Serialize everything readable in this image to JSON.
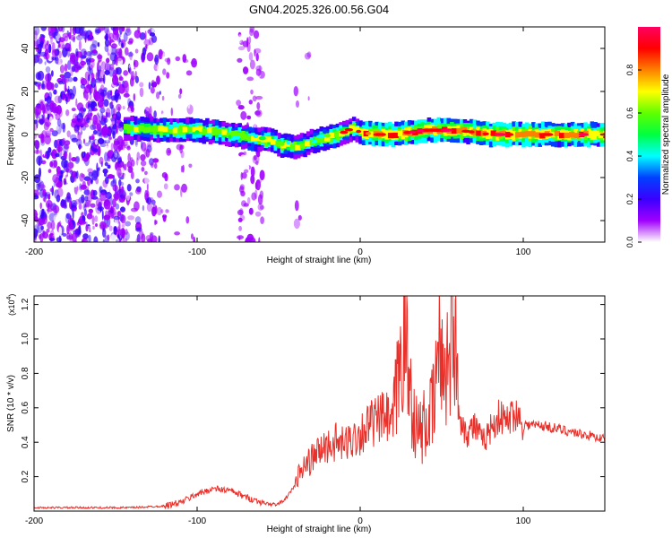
{
  "title": "GN04.2025.326.00.56.G04",
  "chart_data": [
    {
      "type": "heatmap",
      "title": "GN04.2025.326.00.56.G04",
      "xlabel": "Height of straight line (km)",
      "ylabel": "Frequency (Hz)",
      "xlim": [
        -200,
        150
      ],
      "ylim": [
        -50,
        50
      ],
      "xticks": [
        "-200",
        "-100",
        "0",
        "100"
      ],
      "yticks": [
        "40",
        "20",
        "0",
        "-20",
        "-40"
      ],
      "colorbar": {
        "label": "Normalized spectral amplitude",
        "range": [
          0,
          1
        ],
        "ticks": [
          "0.0",
          "0.2",
          "0.4",
          "0.6",
          "0.8"
        ],
        "colors": [
          "#ffffff",
          "#a000ff",
          "#3a00ff",
          "#0040ff",
          "#00ffff",
          "#00ff40",
          "#60ff00",
          "#ffff00",
          "#ff8000",
          "#ff0000",
          "#ff0060"
        ]
      },
      "ridge": {
        "x": [
          -145,
          -120,
          -100,
          -80,
          -65,
          -55,
          -50,
          -45,
          -40,
          -30,
          -20,
          -10,
          -5,
          0,
          10,
          20,
          30,
          40,
          50,
          60,
          80,
          100,
          120,
          150
        ],
        "frequency": [
          3,
          2,
          2,
          0,
          -2,
          -3,
          -5,
          -5,
          -6,
          -3,
          -1,
          1,
          3,
          1,
          0,
          0,
          1,
          2,
          2,
          2,
          0,
          0,
          0,
          0
        ]
      }
    },
    {
      "type": "line",
      "xlabel": "Height of straight line (km)",
      "ylabel": "SNR (10 * v/v)",
      "y_multiplier": "(x10",
      "y_multiplier_exp": "4",
      "y_multiplier_close": ")",
      "xlim": [
        -200,
        150
      ],
      "ylim": [
        0,
        1.25
      ],
      "xticks": [
        "-200",
        "-100",
        "0",
        "100"
      ],
      "yticks": [
        "0.2",
        "0.4",
        "0.6",
        "0.8",
        "1.0",
        "1.2"
      ],
      "color": "#e8312b",
      "series": [
        {
          "name": "SNR",
          "x": [
            -200,
            -180,
            -160,
            -140,
            -120,
            -110,
            -100,
            -90,
            -80,
            -70,
            -60,
            -55,
            -50,
            -45,
            -40,
            -35,
            -30,
            -25,
            -20,
            -15,
            -10,
            -5,
            0,
            5,
            10,
            15,
            20,
            25,
            27,
            30,
            35,
            40,
            45,
            48,
            50,
            55,
            57,
            60,
            65,
            70,
            75,
            80,
            85,
            90,
            95,
            100,
            110,
            120,
            130,
            140,
            150
          ],
          "y": [
            0.02,
            0.02,
            0.02,
            0.02,
            0.03,
            0.05,
            0.1,
            0.13,
            0.12,
            0.08,
            0.05,
            0.04,
            0.04,
            0.08,
            0.15,
            0.25,
            0.3,
            0.35,
            0.38,
            0.4,
            0.38,
            0.42,
            0.45,
            0.5,
            0.52,
            0.55,
            0.5,
            0.9,
            1.05,
            0.75,
            0.45,
            0.5,
            0.6,
            0.95,
            0.85,
            0.9,
            1.25,
            0.6,
            0.45,
            0.5,
            0.4,
            0.48,
            0.55,
            0.52,
            0.58,
            0.5,
            0.5,
            0.48,
            0.46,
            0.44,
            0.42
          ]
        }
      ]
    }
  ]
}
